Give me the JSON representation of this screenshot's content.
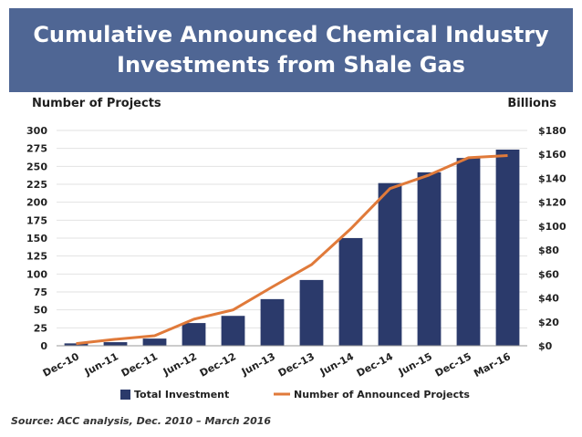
{
  "header": {
    "title_line1": "Cumulative Announced Chemical Industry",
    "title_line2": "Investments from Shale Gas"
  },
  "source_note": "Source: ACC analysis, Dec. 2010 – March 2016",
  "colors": {
    "title_band": "#4f6694",
    "bars": "#2b3a6b",
    "line": "#e07a3a"
  },
  "chart_data": {
    "type": "bar",
    "categories": [
      "Dec-10",
      "Jun-11",
      "Dec-11",
      "Jun-12",
      "Dec-12",
      "Jun-13",
      "Dec-13",
      "Jun-14",
      "Dec-14",
      "Jun-15",
      "Dec-15",
      "Mar-16"
    ],
    "series": [
      {
        "name": "Total Investment",
        "type": "bar",
        "axis": "right",
        "values": [
          2,
          3,
          6,
          19,
          25,
          39,
          55,
          90,
          136,
          145,
          157,
          164
        ]
      },
      {
        "name": "Number of Announced Projects",
        "type": "line",
        "axis": "left",
        "values": [
          3,
          9,
          14,
          37,
          50,
          82,
          113,
          163,
          219,
          238,
          262,
          265
        ]
      }
    ],
    "ylabel": "Number of Projects",
    "ylabel_right": "Billions",
    "ylim": [
      0,
      300
    ],
    "ylim_right": [
      0,
      180
    ],
    "yticks": [
      "0",
      "25",
      "50",
      "75",
      "100",
      "125",
      "150",
      "175",
      "200",
      "225",
      "250",
      "275",
      "300"
    ],
    "yticks_right": [
      "$0",
      "$20",
      "$40",
      "$60",
      "$80",
      "$100",
      "$120",
      "$140",
      "$160",
      "$180"
    ],
    "grid": true,
    "legend_position": "bottom"
  }
}
